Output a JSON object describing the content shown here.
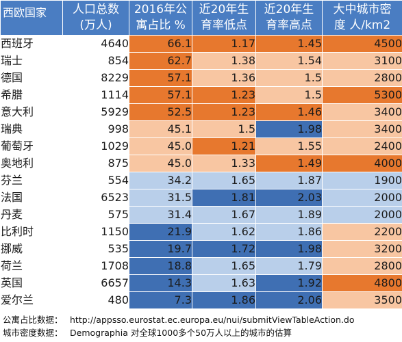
{
  "colors": {
    "dark_orange": "#e7782e",
    "light_orange": "#f8c6a2",
    "light_blue": "#b9cfea",
    "dark_blue": "#3f6fb3",
    "header_blue": "#4a7dc2"
  },
  "headers": {
    "country": "西欧国家",
    "population_l1": "人口总数",
    "population_l2": "(万人)",
    "share_l1": "2016年公",
    "share_l2": "寓占比 %",
    "low_l1": "近20年生",
    "low_l2": "育率低点",
    "high_l1": "近20年生",
    "high_l2": "育率高点",
    "density_l1": "大中城市密",
    "density_l2": "度 人/km2"
  },
  "rows": [
    {
      "name": "西班牙",
      "pop": "4640",
      "share": "66.1",
      "low": "1.17",
      "high": "1.45",
      "density": "4500",
      "c": [
        "DO",
        "DO",
        "DO",
        "DO"
      ]
    },
    {
      "name": "瑞士",
      "pop": "854",
      "share": "62.7",
      "low": "1.38",
      "high": "1.54",
      "density": "3100",
      "c": [
        "DO",
        "LO",
        "LO",
        "LO"
      ]
    },
    {
      "name": "德国",
      "pop": "8229",
      "share": "57.1",
      "low": "1.36",
      "high": "1.5",
      "density": "2800",
      "c": [
        "DO",
        "LO",
        "LO",
        "LO"
      ]
    },
    {
      "name": "希腊",
      "pop": "1114",
      "share": "57.1",
      "low": "1.23",
      "high": "1.5",
      "density": "5300",
      "c": [
        "DO",
        "DO",
        "LO",
        "DO"
      ]
    },
    {
      "name": "意大利",
      "pop": "5929",
      "share": "52.5",
      "low": "1.23",
      "high": "1.46",
      "density": "3400",
      "c": [
        "DO",
        "DO",
        "DO",
        "LO"
      ]
    },
    {
      "name": "瑞典",
      "pop": "998",
      "share": "45.1",
      "low": "1.5",
      "high": "1.98",
      "density": "3400",
      "c": [
        "LO",
        "LO",
        "DB",
        "LO"
      ]
    },
    {
      "name": "葡萄牙",
      "pop": "1029",
      "share": "45.0",
      "low": "1.21",
      "high": "1.55",
      "density": "2400",
      "c": [
        "LO",
        "DO",
        "LO",
        "LO"
      ]
    },
    {
      "name": "奥地利",
      "pop": "875",
      "share": "45.0",
      "low": "1.33",
      "high": "1.49",
      "density": "4000",
      "c": [
        "LO",
        "LO",
        "DO",
        "DO"
      ]
    },
    {
      "name": "芬兰",
      "pop": "554",
      "share": "34.2",
      "low": "1.65",
      "high": "1.87",
      "density": "1900",
      "c": [
        "LB",
        "LB",
        "LB",
        "LB"
      ]
    },
    {
      "name": "法国",
      "pop": "6523",
      "share": "31.5",
      "low": "1.81",
      "high": "2.03",
      "density": "2000",
      "c": [
        "LB",
        "DB",
        "DB",
        "LB"
      ]
    },
    {
      "name": "丹麦",
      "pop": "575",
      "share": "31.4",
      "low": "1.67",
      "high": "1.89",
      "density": "2000",
      "c": [
        "LB",
        "LB",
        "LB",
        "LB"
      ]
    },
    {
      "name": "比利时",
      "pop": "1150",
      "share": "21.9",
      "low": "1.62",
      "high": "1.86",
      "density": "2200",
      "c": [
        "DB",
        "LB",
        "LB",
        "LO"
      ]
    },
    {
      "name": "挪威",
      "pop": "535",
      "share": "19.7",
      "low": "1.72",
      "high": "1.98",
      "density": "3200",
      "c": [
        "DB",
        "DB",
        "DB",
        "LO"
      ]
    },
    {
      "name": "荷兰",
      "pop": "1708",
      "share": "18.8",
      "low": "1.65",
      "high": "1.79",
      "density": "2800",
      "c": [
        "DB",
        "LB",
        "LB",
        "LO"
      ]
    },
    {
      "name": "英国",
      "pop": "6657",
      "share": "14.3",
      "low": "1.63",
      "high": "1.92",
      "density": "4800",
      "c": [
        "DB",
        "LB",
        "DB",
        "DO"
      ]
    },
    {
      "name": "爱尔兰",
      "pop": "480",
      "share": "7.3",
      "low": "1.86",
      "high": "2.06",
      "density": "3500",
      "c": [
        "DB",
        "DB",
        "DB",
        "LO"
      ]
    }
  ],
  "footer": {
    "apartment_label": "公寓占比数据：",
    "apartment_source": "http://appsso.eurostat.ec.europa.eu/nui/submitViewTableAction.do",
    "density_label": "城市密度数据：",
    "density_source": "Demographia 对全球1000多个50万人以上的城市的估算"
  }
}
